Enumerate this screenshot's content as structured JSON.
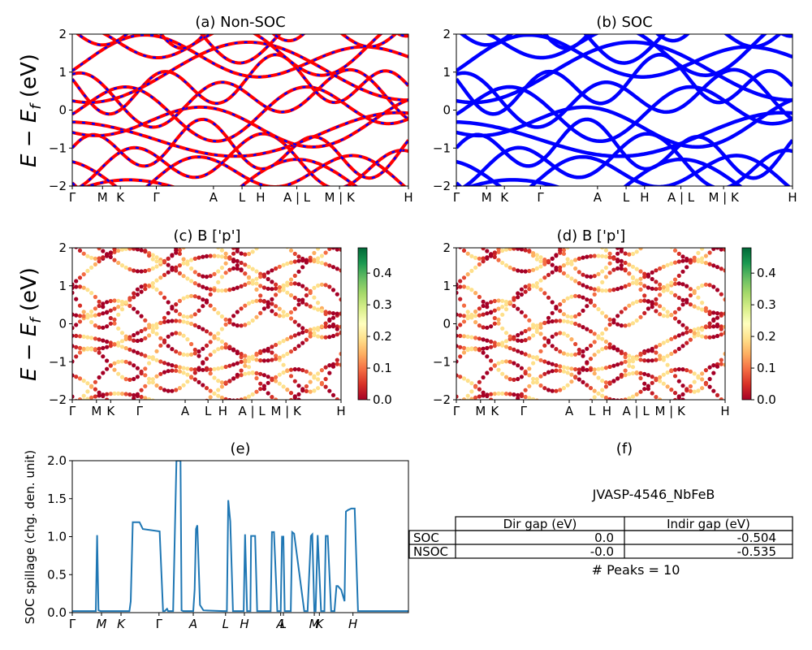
{
  "panels": {
    "a": {
      "title": "(a) Non-SOC",
      "ylabel": "E − E_f (eV)"
    },
    "b": {
      "title": "(b) SOC"
    },
    "c": {
      "title": "(c)  B ['p']",
      "ylabel": "E − E_f (eV)"
    },
    "d": {
      "title": "(d) B ['p']"
    },
    "e": {
      "title": "(e)",
      "ylabel": "SOC spillage (chg. den. unit)"
    },
    "f": {
      "title": "(f)"
    }
  },
  "band_axis": {
    "ylim": [
      -2,
      2
    ],
    "yticks": [
      "2",
      "1",
      "0",
      "−1",
      "−2"
    ],
    "kpath_labels": [
      "Γ",
      "M",
      "K",
      "Γ",
      "A",
      "L",
      "H",
      "A | L",
      "M | K",
      "H"
    ]
  },
  "colorbar": {
    "ticks": [
      "0.0",
      "0.1",
      "0.2",
      "0.3",
      "0.4"
    ],
    "range": [
      0,
      0.48
    ],
    "colormap": "RdYlGn"
  },
  "colors": {
    "nonsoc_red": "#ff0000",
    "nonsoc_blue_dash": "#0000ff",
    "soc_blue": "#0000ff",
    "spillage_line": "#1f77b4"
  },
  "chart_data": [
    {
      "type": "line",
      "id": "a",
      "title": "(a) Non-SOC",
      "xlabel": "",
      "ylabel": "E − E_f (eV)",
      "ylim": [
        -2,
        2
      ],
      "x_ticks": [
        "Γ",
        "M",
        "K",
        "Γ",
        "A",
        "L",
        "H",
        "A | L",
        "M | K",
        "H"
      ],
      "style": "red solid with blue dashes"
    },
    {
      "type": "line",
      "id": "b",
      "title": "(b) SOC",
      "ylim": [
        -2,
        2
      ],
      "x_ticks": [
        "Γ",
        "M",
        "K",
        "Γ",
        "A",
        "L",
        "H",
        "A | L",
        "M | K",
        "H"
      ],
      "style": "blue solid"
    },
    {
      "type": "scatter",
      "id": "c",
      "title": "(c)  B ['p']",
      "ylabel": "E − E_f (eV)",
      "ylim": [
        -2,
        2
      ],
      "colorbar_ticks": [
        "0.0",
        "0.1",
        "0.2",
        "0.3",
        "0.4"
      ]
    },
    {
      "type": "scatter",
      "id": "d",
      "title": "(d) B ['p']",
      "ylim": [
        -2,
        2
      ],
      "colorbar_ticks": [
        "0.0",
        "0.1",
        "0.2",
        "0.3",
        "0.4"
      ]
    },
    {
      "type": "line",
      "id": "e",
      "title": "(e)",
      "ylabel": "SOC spillage (chg. den. unit)",
      "ylim": [
        0,
        2.0
      ],
      "yticks": [
        "0.0",
        "0.5",
        "1.0",
        "1.5",
        "2.0"
      ],
      "x_ticks": [
        "Γ",
        "M",
        "K",
        "Γ",
        "A",
        "L",
        "H",
        "A",
        "L",
        "M",
        "K",
        "H"
      ],
      "x": [
        0,
        7,
        7.4,
        7.8,
        8.4,
        17,
        17.4,
        18,
        18.4,
        20,
        21,
        26,
        27,
        27.5,
        28.2,
        28.5,
        30,
        31,
        32.2,
        32.5,
        33,
        33.4,
        34,
        35,
        36,
        36.4,
        36.8,
        37.2,
        38,
        39,
        45,
        46,
        46.4,
        47,
        47.8,
        50,
        51,
        51.4,
        52,
        52.4,
        53,
        53.2,
        53.6,
        54,
        54.4,
        55,
        56,
        58,
        59,
        59.4,
        60,
        61,
        61.4,
        62,
        62.4,
        62.8,
        63.2,
        64,
        65,
        65.4,
        66,
        69,
        69.5,
        70,
        71,
        71.4,
        72,
        72.4,
        73,
        74,
        75,
        75.4,
        76,
        77,
        78,
        78.6,
        79,
        80,
        81,
        81.4,
        82,
        83,
        84,
        85,
        85.4,
        86,
        87,
        88,
        89,
        89.4,
        90,
        91,
        92,
        93,
        94,
        95,
        96,
        97,
        98,
        99,
        100
      ],
      "y": [
        0.02,
        0.02,
        1.02,
        0.03,
        0.02,
        0.02,
        0.15,
        1.19,
        1.19,
        1.19,
        1.1,
        1.07,
        0.02,
        0.02,
        0.05,
        0.02,
        0.02,
        2.0,
        2.0,
        0.03,
        0.02,
        0.02,
        0.02,
        0.02,
        0.02,
        0.3,
        1.1,
        1.15,
        0.1,
        0.03,
        0.02,
        0.02,
        1.48,
        1.2,
        0.02,
        0.02,
        0.02,
        1.03,
        0.02,
        0.02,
        0.02,
        1.01,
        1.01,
        1.01,
        1.01,
        0.02,
        0.02,
        0.02,
        0.02,
        1.06,
        1.06,
        0.02,
        0.02,
        0.02,
        1.0,
        1.0,
        0.02,
        0.02,
        0.02,
        1.06,
        1.04,
        0.02,
        0.02,
        0.02,
        1.01,
        1.03,
        0.02,
        0.02,
        1.02,
        0.02,
        0.02,
        1.01,
        1.01,
        0.02,
        0.02,
        0.35,
        0.35,
        0.3,
        0.15,
        1.33,
        1.35,
        1.37,
        1.37,
        0.02,
        0.02,
        0.02,
        0.02,
        0.02,
        0.02,
        0.02,
        0.02,
        0.02,
        0.02,
        0.02,
        0.02,
        0.02,
        0.02,
        0.02,
        0.02,
        0.02,
        0.02
      ]
    },
    {
      "type": "table",
      "id": "f",
      "title": "(f)",
      "material": "JVASP-4546_NbFeB",
      "columns": [
        "Dir gap (eV)",
        "Indir gap (eV)"
      ],
      "rows": [
        {
          "label": "SOC",
          "values": [
            "0.0",
            "-0.504"
          ]
        },
        {
          "label": "NSOC",
          "values": [
            "-0.0",
            "-0.535"
          ]
        }
      ],
      "note": "# Peaks = 10"
    }
  ]
}
